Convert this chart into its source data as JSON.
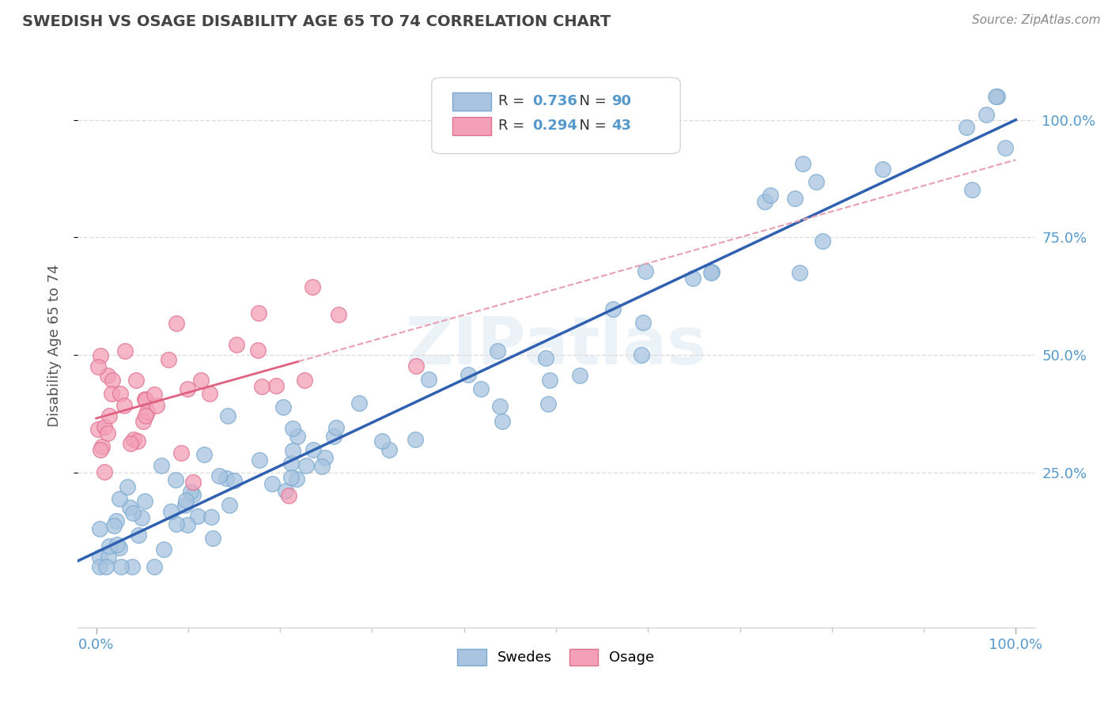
{
  "title": "SWEDISH VS OSAGE DISABILITY AGE 65 TO 74 CORRELATION CHART",
  "source": "Source: ZipAtlas.com",
  "ylabel": "Disability Age 65 to 74",
  "swedes_R": 0.736,
  "swedes_N": 90,
  "osage_R": 0.294,
  "osage_N": 43,
  "swedes_color": "#a8c4e0",
  "swedes_edge_color": "#7aaad0",
  "osage_color": "#f4a0b8",
  "osage_edge_color": "#e07090",
  "swedes_line_color": "#3060b0",
  "osage_line_color": "#e06080",
  "osage_dash_color": "#e8a0b0",
  "watermark": "ZIPatlas",
  "background_color": "#ffffff",
  "grid_color": "#dddddd",
  "title_color": "#444444",
  "tick_color": "#5599cc"
}
